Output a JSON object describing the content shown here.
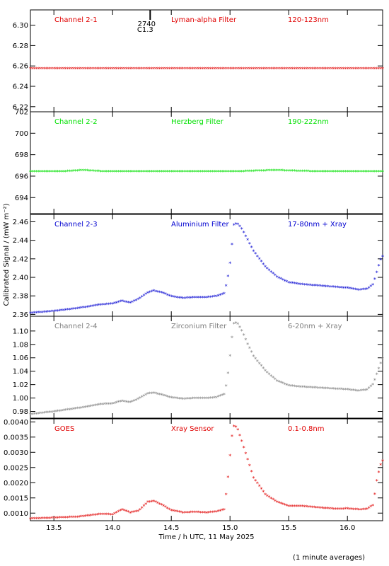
{
  "chart_data": {
    "type": "scatter",
    "xlabel": "Time / h UTC, 11 May 2025",
    "ylabel": "Calibrated Signal / (mW m⁻²)",
    "footnote": "(1 minute averages)",
    "xlim": [
      13.3,
      16.3
    ],
    "xticks": [
      "13.5",
      "14.0",
      "14.5",
      "15.0",
      "15.5",
      "16.0"
    ],
    "flare_marker": {
      "x": 14.32,
      "label_top": "2740",
      "label_bottom": "C1.3"
    },
    "panels": [
      {
        "channel": "Channel 2-1",
        "filter": "Lyman-alpha Filter",
        "band": "120-123nm",
        "color": "#e00000",
        "ylim": [
          6.215,
          6.315
        ],
        "yticks": [
          "6.22",
          "6.24",
          "6.26",
          "6.28",
          "6.30"
        ],
        "points": [
          [
            13.3,
            6.257
          ],
          [
            13.6,
            6.257
          ],
          [
            13.9,
            6.257
          ],
          [
            14.2,
            6.257
          ],
          [
            14.5,
            6.257
          ],
          [
            14.8,
            6.257
          ],
          [
            15.1,
            6.257
          ],
          [
            15.4,
            6.257
          ],
          [
            15.7,
            6.257
          ],
          [
            16.0,
            6.257
          ],
          [
            16.3,
            6.257
          ]
        ]
      },
      {
        "channel": "Channel 2-2",
        "filter": "Herzberg Filter",
        "band": "190-222nm",
        "color": "#00e000",
        "ylim": [
          692.5,
          702
        ],
        "yticks": [
          "694",
          "696",
          "698",
          "700",
          "702"
        ],
        "points": [
          [
            13.3,
            696.4
          ],
          [
            13.6,
            696.4
          ],
          [
            13.75,
            696.5
          ],
          [
            13.9,
            696.4
          ],
          [
            14.2,
            696.4
          ],
          [
            14.5,
            696.4
          ],
          [
            14.8,
            696.4
          ],
          [
            15.1,
            696.4
          ],
          [
            15.37,
            696.5
          ],
          [
            15.7,
            696.4
          ],
          [
            16.0,
            696.4
          ],
          [
            16.3,
            696.4
          ]
        ]
      },
      {
        "channel": "Channel 2-3",
        "filter": "Aluminium Filter",
        "band": "17-80nm + Xray",
        "color": "#0000d0",
        "ylim": [
          2.358,
          2.468
        ],
        "yticks": [
          "2.36",
          "2.38",
          "2.40",
          "2.42",
          "2.44",
          "2.46"
        ],
        "points": [
          [
            13.3,
            2.361
          ],
          [
            13.5,
            2.363
          ],
          [
            13.7,
            2.366
          ],
          [
            13.9,
            2.37
          ],
          [
            14.0,
            2.371
          ],
          [
            14.08,
            2.374
          ],
          [
            14.15,
            2.372
          ],
          [
            14.22,
            2.376
          ],
          [
            14.3,
            2.383
          ],
          [
            14.35,
            2.385
          ],
          [
            14.42,
            2.383
          ],
          [
            14.5,
            2.379
          ],
          [
            14.6,
            2.377
          ],
          [
            14.7,
            2.378
          ],
          [
            14.8,
            2.378
          ],
          [
            14.88,
            2.379
          ],
          [
            14.95,
            2.382
          ],
          [
            14.97,
            2.392
          ],
          [
            14.99,
            2.405
          ],
          [
            15.01,
            2.425
          ],
          [
            15.03,
            2.456
          ],
          [
            15.06,
            2.458
          ],
          [
            15.1,
            2.452
          ],
          [
            15.15,
            2.44
          ],
          [
            15.2,
            2.428
          ],
          [
            15.3,
            2.411
          ],
          [
            15.4,
            2.4
          ],
          [
            15.5,
            2.394
          ],
          [
            15.6,
            2.392
          ],
          [
            15.7,
            2.391
          ],
          [
            15.8,
            2.39
          ],
          [
            15.9,
            2.389
          ],
          [
            16.0,
            2.388
          ],
          [
            16.1,
            2.386
          ],
          [
            16.17,
            2.387
          ],
          [
            16.22,
            2.392
          ],
          [
            16.25,
            2.405
          ],
          [
            16.28,
            2.418
          ],
          [
            16.3,
            2.422
          ]
        ]
      },
      {
        "channel": "Channel 2-4",
        "filter": "Zirconium Filter",
        "band": "6-20nm + Xray",
        "color": "#808080",
        "ylim": [
          0.97,
          1.122
        ],
        "yticks": [
          "0.98",
          "1.00",
          "1.02",
          "1.04",
          "1.06",
          "1.08",
          "1.10"
        ],
        "points": [
          [
            13.3,
            0.975
          ],
          [
            13.5,
            0.979
          ],
          [
            13.7,
            0.984
          ],
          [
            13.9,
            0.99
          ],
          [
            14.0,
            0.991
          ],
          [
            14.08,
            0.995
          ],
          [
            14.15,
            0.993
          ],
          [
            14.22,
            0.998
          ],
          [
            14.3,
            1.006
          ],
          [
            14.35,
            1.007
          ],
          [
            14.42,
            1.004
          ],
          [
            14.5,
            1.0
          ],
          [
            14.6,
            0.998
          ],
          [
            14.7,
            0.999
          ],
          [
            14.8,
            0.999
          ],
          [
            14.88,
            1.0
          ],
          [
            14.95,
            1.005
          ],
          [
            14.97,
            1.02
          ],
          [
            14.99,
            1.045
          ],
          [
            15.01,
            1.08
          ],
          [
            15.03,
            1.11
          ],
          [
            15.06,
            1.112
          ],
          [
            15.1,
            1.1
          ],
          [
            15.15,
            1.08
          ],
          [
            15.2,
            1.062
          ],
          [
            15.3,
            1.04
          ],
          [
            15.4,
            1.025
          ],
          [
            15.5,
            1.018
          ],
          [
            15.6,
            1.016
          ],
          [
            15.7,
            1.015
          ],
          [
            15.8,
            1.014
          ],
          [
            15.9,
            1.013
          ],
          [
            16.0,
            1.012
          ],
          [
            16.1,
            1.01
          ],
          [
            16.17,
            1.012
          ],
          [
            16.22,
            1.02
          ],
          [
            16.25,
            1.035
          ],
          [
            16.28,
            1.05
          ],
          [
            16.3,
            1.058
          ]
        ]
      },
      {
        "channel": "GOES",
        "filter": "Xray Sensor",
        "band": "0.1-0.8nm",
        "color": "#e00000",
        "ylim": [
          0.00075,
          0.0041
        ],
        "yticks": [
          "0.0010",
          "0.0015",
          "0.0020",
          "0.0025",
          "0.0030",
          "0.0035",
          "0.0040"
        ],
        "points": [
          [
            13.3,
            0.0008
          ],
          [
            13.5,
            0.00083
          ],
          [
            13.7,
            0.00086
          ],
          [
            13.9,
            0.00095
          ],
          [
            14.0,
            0.00094
          ],
          [
            14.08,
            0.0011
          ],
          [
            14.15,
            0.001
          ],
          [
            14.22,
            0.00105
          ],
          [
            14.3,
            0.00135
          ],
          [
            14.35,
            0.00138
          ],
          [
            14.42,
            0.00125
          ],
          [
            14.5,
            0.00108
          ],
          [
            14.6,
            0.001
          ],
          [
            14.7,
            0.00102
          ],
          [
            14.8,
            0.001
          ],
          [
            14.88,
            0.00103
          ],
          [
            14.95,
            0.0011
          ],
          [
            14.97,
            0.0017
          ],
          [
            14.99,
            0.0024
          ],
          [
            15.01,
            0.00335
          ],
          [
            15.03,
            0.00385
          ],
          [
            15.06,
            0.0038
          ],
          [
            15.1,
            0.00335
          ],
          [
            15.15,
            0.00275
          ],
          [
            15.2,
            0.00215
          ],
          [
            15.3,
            0.0016
          ],
          [
            15.4,
            0.00135
          ],
          [
            15.5,
            0.00122
          ],
          [
            15.6,
            0.00122
          ],
          [
            15.7,
            0.00118
          ],
          [
            15.8,
            0.00115
          ],
          [
            15.9,
            0.00112
          ],
          [
            16.0,
            0.00113
          ],
          [
            16.1,
            0.0011
          ],
          [
            16.17,
            0.00112
          ],
          [
            16.22,
            0.00125
          ],
          [
            16.25,
            0.00205
          ],
          [
            16.28,
            0.00255
          ],
          [
            16.3,
            0.0027
          ]
        ]
      }
    ]
  }
}
